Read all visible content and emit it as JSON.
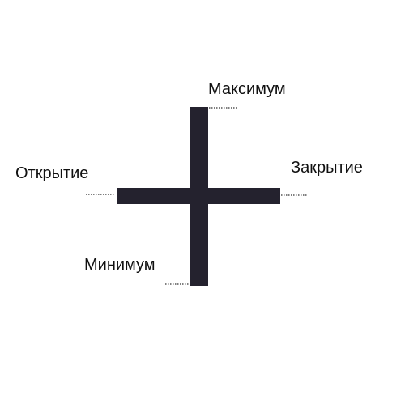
{
  "labels": {
    "high": "Максимум",
    "open": "Открытие",
    "close": "Закрытие",
    "low": "Минимум"
  },
  "colors": {
    "bar": "#24222e",
    "dotted_line": "#333333",
    "text": "#111111",
    "background": "#ffffff"
  }
}
